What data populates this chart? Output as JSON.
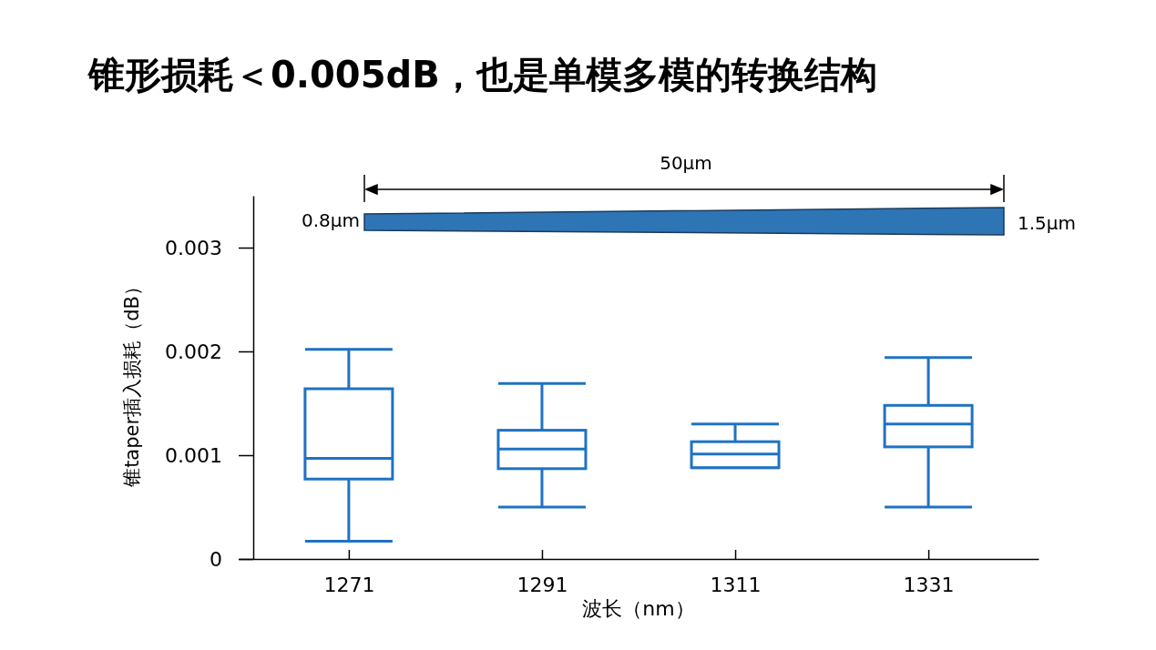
{
  "chart_data": {
    "type": "box",
    "title": "锥形损耗＜0.005dB，也是单模多模的转换结构",
    "xlabel": "波长（nm）",
    "ylabel": "锥taper插入损耗（dB）",
    "categories": [
      "1271",
      "1291",
      "1311",
      "1331"
    ],
    "color": "#1f72c2",
    "boxes": [
      {
        "low": 0.00017,
        "q1": 0.00077,
        "median": 0.00097,
        "q3": 0.00164,
        "high": 0.00202
      },
      {
        "low": 0.0005,
        "q1": 0.00087,
        "median": 0.00106,
        "q3": 0.00124,
        "high": 0.00169
      },
      {
        "low": 0.00088,
        "q1": 0.00088,
        "median": 0.00101,
        "q3": 0.00113,
        "high": 0.0013
      },
      {
        "low": 0.0005,
        "q1": 0.00108,
        "median": 0.0013,
        "q3": 0.00148,
        "high": 0.00194
      }
    ],
    "ylim": [
      0,
      0.0035
    ],
    "yticks": [
      0,
      0.001,
      0.002,
      0.003
    ],
    "grid": false,
    "annotations": [
      "50μm",
      "0.8μm",
      "1.5μm"
    ]
  }
}
